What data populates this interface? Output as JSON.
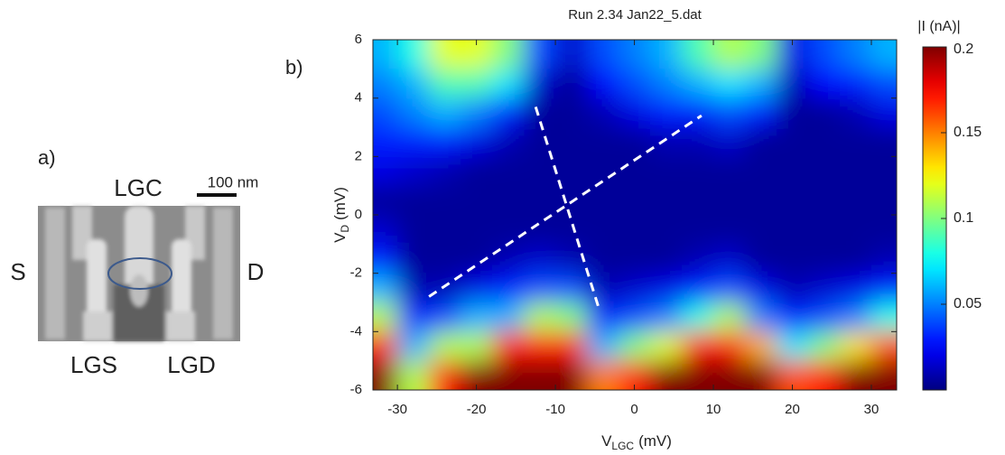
{
  "panel_a": {
    "label": "a)",
    "gate_top": "LGC",
    "scale_bar": "100 nm",
    "source": "S",
    "drain": "D",
    "gate_left": "LGS",
    "gate_right": "LGD"
  },
  "chart_data": {
    "type": "heatmap",
    "panel_label": "b)",
    "title": "Run 2.34 Jan22_5.dat",
    "xlabel": {
      "text": "V",
      "sub": "LGC",
      "unit": "(mV)"
    },
    "ylabel": {
      "text": "V",
      "sub": "D",
      "unit": "(mV)"
    },
    "x": [
      -32,
      -28,
      -24,
      -20,
      -16,
      -12,
      -8,
      -4,
      0,
      4,
      8,
      12,
      16,
      20,
      24,
      28,
      32
    ],
    "y": [
      5.5,
      4.5,
      3.5,
      2.5,
      1.5,
      0.5,
      -0.5,
      -1.5,
      -2.5,
      -3.5,
      -4.5,
      -5.5
    ],
    "z": [
      [
        0.06,
        0.08,
        0.12,
        0.12,
        0.1,
        0.04,
        0.015,
        0.04,
        0.05,
        0.06,
        0.09,
        0.11,
        0.1,
        0.02,
        0.04,
        0.05,
        0.06
      ],
      [
        0.05,
        0.06,
        0.09,
        0.09,
        0.07,
        0.015,
        0.005,
        0.025,
        0.04,
        0.05,
        0.06,
        0.07,
        0.06,
        0.01,
        0.025,
        0.03,
        0.04
      ],
      [
        0.04,
        0.05,
        0.06,
        0.05,
        0.03,
        0.005,
        0.005,
        0.01,
        0.02,
        0.03,
        0.03,
        0.04,
        0.03,
        0.005,
        0.005,
        0.01,
        0.02
      ],
      [
        0.03,
        0.03,
        0.03,
        0.02,
        0.01,
        0.005,
        0.005,
        0.005,
        0.005,
        0.01,
        0.01,
        0.015,
        0.005,
        0.005,
        0.005,
        0.005,
        0.005
      ],
      [
        0.02,
        0.015,
        0.01,
        0.005,
        0.005,
        0.005,
        0.005,
        0.005,
        0.005,
        0.005,
        0.005,
        0.005,
        0.005,
        0.005,
        0.005,
        0.005,
        0.005
      ],
      [
        0.005,
        0.005,
        0.005,
        0.005,
        0.005,
        0.005,
        0.005,
        0.005,
        0.005,
        0.005,
        0.005,
        0.005,
        0.005,
        0.005,
        0.005,
        0.005,
        0.005
      ],
      [
        0.015,
        0.005,
        0.005,
        0.005,
        0.005,
        0.005,
        0.005,
        0.005,
        0.005,
        0.005,
        0.005,
        0.005,
        0.005,
        0.005,
        0.005,
        0.005,
        0.005
      ],
      [
        0.03,
        0.005,
        0.005,
        0.005,
        0.01,
        0.015,
        0.01,
        0.005,
        0.005,
        0.005,
        0.01,
        0.015,
        0.005,
        0.005,
        0.005,
        0.005,
        0.01
      ],
      [
        0.06,
        0.01,
        0.01,
        0.02,
        0.03,
        0.04,
        0.04,
        0.01,
        0.015,
        0.02,
        0.03,
        0.04,
        0.02,
        0.01,
        0.015,
        0.02,
        0.03
      ],
      [
        0.11,
        0.03,
        0.04,
        0.06,
        0.06,
        0.11,
        0.1,
        0.03,
        0.04,
        0.05,
        0.08,
        0.11,
        0.05,
        0.03,
        0.04,
        0.05,
        0.08
      ],
      [
        0.17,
        0.06,
        0.11,
        0.11,
        0.17,
        0.17,
        0.17,
        0.06,
        0.1,
        0.12,
        0.17,
        0.17,
        0.14,
        0.07,
        0.1,
        0.13,
        0.16
      ],
      [
        0.2,
        0.11,
        0.17,
        0.2,
        0.2,
        0.2,
        0.2,
        0.15,
        0.17,
        0.2,
        0.2,
        0.2,
        0.2,
        0.16,
        0.17,
        0.2,
        0.2
      ]
    ],
    "xlim": [
      -33.1,
      33.2
    ],
    "ylim": [
      -6,
      6
    ],
    "xticks": [
      -30,
      -20,
      -10,
      0,
      10,
      20,
      30
    ],
    "yticks": [
      -6,
      -4,
      -2,
      0,
      2,
      4,
      6
    ],
    "colormap": "jet",
    "colorbar": {
      "label": "|I (nA)|",
      "lim": [
        0,
        0.2
      ],
      "ticks": [
        0.05,
        0.1,
        0.15,
        0.2
      ]
    },
    "dashed_lines": [
      {
        "x": [
          -26,
          8.5
        ],
        "y": [
          -2.8,
          3.4
        ]
      },
      {
        "x": [
          -12.5,
          -4.5
        ],
        "y": [
          3.7,
          -3.2
        ]
      }
    ]
  }
}
